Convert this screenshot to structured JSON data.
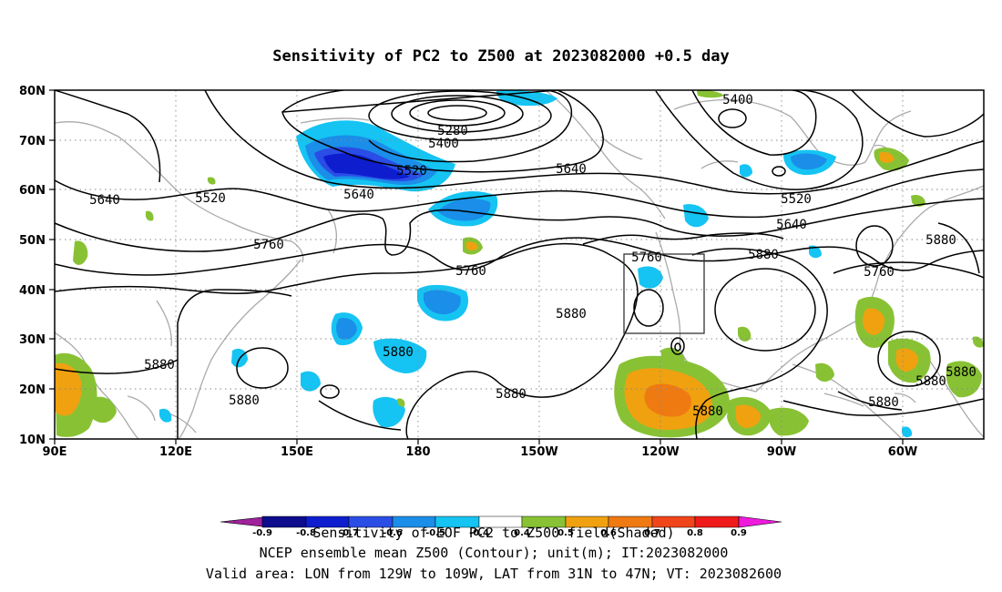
{
  "title": "Sensitivity of PC2 to Z500 at 2023082000 +0.5 day",
  "lat_labels": [
    "80N",
    "70N",
    "60N",
    "50N",
    "40N",
    "30N",
    "20N",
    "10N"
  ],
  "lon_labels": [
    "90E",
    "120E",
    "150E",
    "180",
    "150W",
    "120W",
    "90W",
    "60W"
  ],
  "contour_labels": [
    "5400",
    "5280",
    "5400",
    "5520",
    "5640",
    "5640",
    "5520",
    "5640",
    "5520",
    "5640",
    "5760",
    "5760",
    "5760",
    "5880",
    "5880",
    "5760",
    "5880",
    "5880",
    "5880",
    "5880",
    "5880",
    "5880",
    "5880",
    "5880",
    "5880",
    "5880"
  ],
  "colorbar": {
    "ticks": [
      "-0.9",
      "-0.8",
      "-0.7",
      "-0.6",
      "-0.5",
      "-0.4",
      "0.4",
      "0.5",
      "0.6",
      "0.7",
      "0.8",
      "0.9"
    ],
    "colors": [
      "#a0229c",
      "#0c0c8c",
      "#0e1ecf",
      "#2a4de6",
      "#1a8ee8",
      "#15c4f2",
      "#ffffff",
      "#88c234",
      "#efa110",
      "#ef7a12",
      "#f0441a",
      "#ef1a1a",
      "#ee1bdc"
    ]
  },
  "footer": {
    "line1": "Sensitivity of EOF PC2 to Z500 field(Shaded)",
    "line2": "NCEP ensemble mean Z500 (Contour); unit(m); IT:2023082000",
    "line3": "Valid area: LON from 129W to 109W, LAT from 31N to 47N; VT: 2023082600"
  }
}
